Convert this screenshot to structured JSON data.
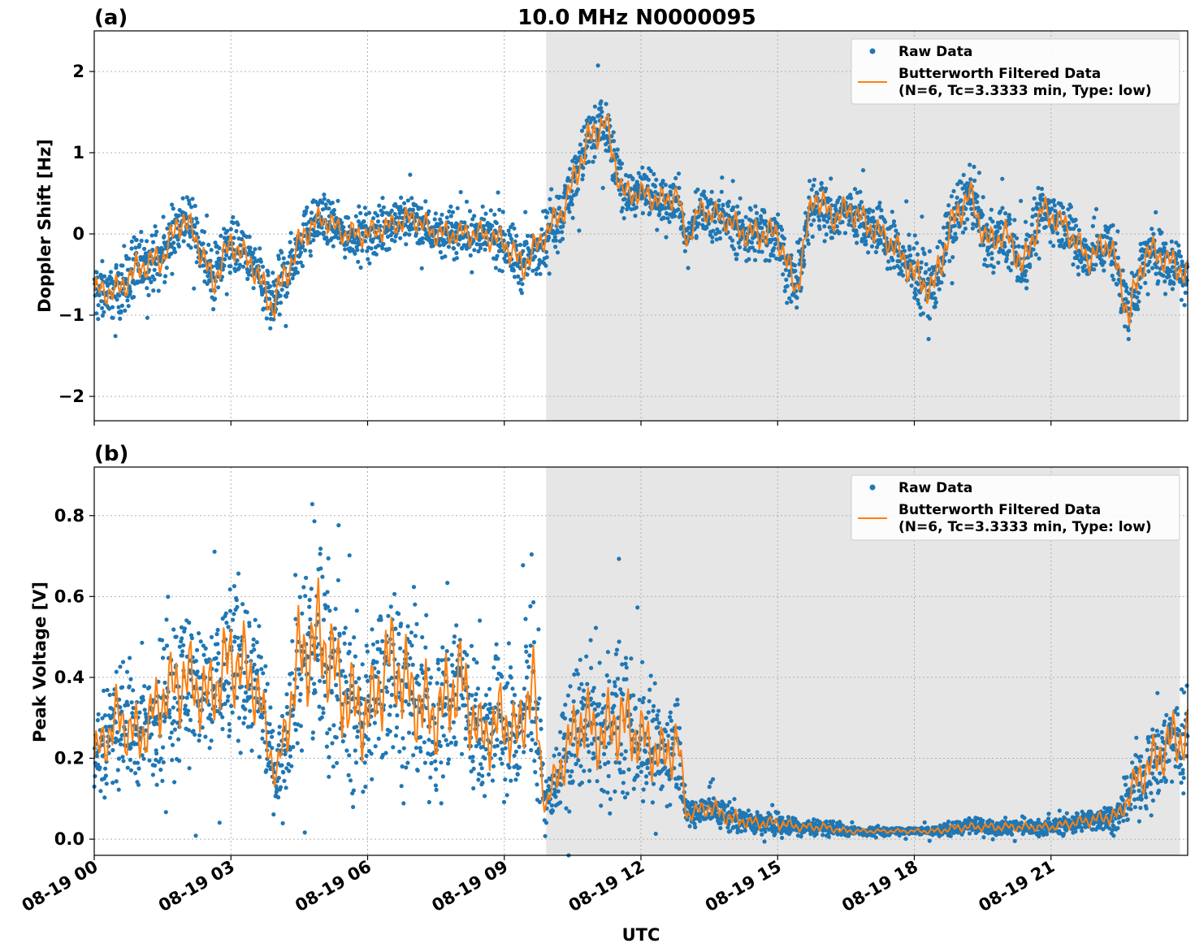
{
  "chart_data": [
    {
      "type": "scatter",
      "panel_label": "(a)",
      "title": "10.0 MHz N0000095",
      "ylabel": "Doppler Shift [Hz]",
      "xlabel": "",
      "xlim_hours": [
        0,
        24
      ],
      "ylim": [
        -2.3,
        2.5
      ],
      "yticks": [
        -2,
        -1,
        0,
        1,
        2
      ],
      "ytick_labels": [
        "−2",
        "−1",
        "0",
        "1",
        "2"
      ],
      "grid": true,
      "legend_position": "top-right",
      "shaded_region_hours": [
        9.92,
        23.83
      ],
      "series": [
        {
          "name": "Raw Data",
          "kind": "scatter",
          "color": "#1f77b4",
          "envelope": {
            "x_hours": [
              0,
              0.5,
              1,
              1.5,
              1.9,
              2.2,
              2.6,
              3.0,
              3.5,
              3.9,
              4.2,
              4.6,
              5.0,
              5.5,
              6.0,
              6.5,
              7.0,
              7.5,
              8.0,
              8.5,
              9.0,
              9.4,
              9.9,
              10.3,
              10.8,
              11.2,
              11.6,
              12.0,
              12.5,
              12.8,
              13.0,
              13.3,
              13.8,
              14.3,
              14.7,
              15.0,
              15.4,
              15.8,
              16.2,
              16.6,
              17.0,
              17.5,
              18.0,
              18.4,
              18.8,
              19.2,
              19.6,
              20.0,
              20.4,
              20.8,
              21.3,
              21.8,
              22.3,
              22.7,
              23.1,
              23.5,
              24.0
            ],
            "center": [
              -0.7,
              -0.7,
              -0.4,
              -0.3,
              0.2,
              0.0,
              -0.6,
              -0.1,
              -0.4,
              -0.9,
              -0.5,
              0.0,
              0.2,
              0.0,
              0.0,
              0.1,
              0.2,
              0.0,
              0.0,
              0.0,
              -0.1,
              -0.4,
              0.0,
              0.3,
              1.1,
              1.4,
              0.5,
              0.5,
              0.4,
              0.5,
              -0.1,
              0.3,
              0.2,
              0.0,
              0.0,
              0.0,
              -0.7,
              0.5,
              0.2,
              0.3,
              0.1,
              -0.1,
              -0.5,
              -0.7,
              0.1,
              0.5,
              -0.1,
              0.0,
              -0.4,
              0.3,
              0.1,
              -0.3,
              -0.1,
              -1.0,
              -0.2,
              -0.3,
              -0.5
            ],
            "halfwidth": [
              0.35,
              0.35,
              0.4,
              0.35,
              0.4,
              0.35,
              0.4,
              0.35,
              0.35,
              0.45,
              0.4,
              0.35,
              0.3,
              0.3,
              0.3,
              0.3,
              0.3,
              0.3,
              0.3,
              0.3,
              0.35,
              0.4,
              0.35,
              0.35,
              0.45,
              0.45,
              0.3,
              0.3,
              0.3,
              0.3,
              0.2,
              0.3,
              0.3,
              0.35,
              0.4,
              0.35,
              0.4,
              0.4,
              0.35,
              0.35,
              0.35,
              0.35,
              0.4,
              0.45,
              0.4,
              0.4,
              0.35,
              0.35,
              0.4,
              0.35,
              0.35,
              0.35,
              0.35,
              0.45,
              0.35,
              0.35,
              0.35
            ]
          }
        },
        {
          "name": "Butterworth Filtered Data",
          "name_line2": "(N=6, Tc=3.3333 min, Type: low)",
          "kind": "line",
          "color": "#ff7f0e",
          "x_hours": [
            0,
            0.5,
            1,
            1.5,
            1.9,
            2.2,
            2.6,
            3.0,
            3.5,
            3.9,
            4.2,
            4.6,
            5.0,
            5.5,
            6.0,
            6.5,
            7.0,
            7.5,
            8.0,
            8.5,
            9.0,
            9.4,
            9.9,
            10.3,
            10.8,
            11.2,
            11.6,
            12.0,
            12.5,
            12.8,
            13.0,
            13.3,
            13.8,
            14.3,
            14.7,
            15.0,
            15.4,
            15.8,
            16.2,
            16.6,
            17.0,
            17.5,
            18.0,
            18.4,
            18.8,
            19.2,
            19.6,
            20.0,
            20.4,
            20.8,
            21.3,
            21.8,
            22.3,
            22.7,
            23.1,
            23.5,
            24.0
          ],
          "values": [
            -0.7,
            -0.7,
            -0.4,
            -0.3,
            0.2,
            0.0,
            -0.6,
            -0.1,
            -0.4,
            -0.9,
            -0.5,
            0.0,
            0.2,
            0.0,
            0.0,
            0.1,
            0.2,
            0.0,
            0.0,
            0.0,
            -0.1,
            -0.4,
            0.0,
            0.3,
            1.1,
            1.4,
            0.5,
            0.5,
            0.4,
            0.5,
            -0.1,
            0.3,
            0.2,
            0.0,
            0.0,
            0.0,
            -0.7,
            0.5,
            0.2,
            0.3,
            0.1,
            -0.1,
            -0.5,
            -0.7,
            0.1,
            0.5,
            -0.1,
            0.0,
            -0.4,
            0.3,
            0.1,
            -0.3,
            -0.1,
            -1.0,
            -0.2,
            -0.3,
            -0.5
          ]
        }
      ]
    },
    {
      "type": "scatter",
      "panel_label": "(b)",
      "title": "",
      "ylabel": "Peak Voltage [V]",
      "xlabel": "UTC",
      "xlim_hours": [
        0,
        24
      ],
      "ylim": [
        -0.04,
        0.92
      ],
      "yticks": [
        0.0,
        0.2,
        0.4,
        0.6,
        0.8
      ],
      "ytick_labels": [
        "0.0",
        "0.2",
        "0.4",
        "0.6",
        "0.8"
      ],
      "xticks_hours": [
        0,
        3,
        6,
        9,
        12,
        15,
        18,
        21
      ],
      "xtick_labels": [
        "08-19 00",
        "08-19 03",
        "08-19 06",
        "08-19 09",
        "08-19 12",
        "08-19 15",
        "08-19 18",
        "08-19 21"
      ],
      "grid": true,
      "legend_position": "top-right",
      "shaded_region_hours": [
        9.92,
        23.83
      ],
      "series": [
        {
          "name": "Raw Data",
          "kind": "scatter",
          "color": "#1f77b4",
          "envelope": {
            "x_hours": [
              0,
              0.5,
              1.0,
              1.5,
              2.0,
              2.5,
              3.0,
              3.5,
              4.0,
              4.5,
              5.0,
              5.5,
              6.0,
              6.5,
              7.0,
              7.5,
              8.0,
              8.5,
              9.0,
              9.3,
              9.6,
              9.9,
              10.3,
              10.7,
              11.1,
              11.5,
              12.0,
              12.5,
              12.8,
              13.0,
              13.5,
              14.0,
              14.5,
              15.0,
              15.5,
              16.0,
              16.5,
              17.0,
              17.5,
              18.0,
              18.5,
              19.0,
              19.5,
              20.0,
              20.5,
              21.0,
              21.5,
              22.0,
              22.5,
              22.9,
              23.3,
              23.7,
              24.0
            ],
            "center": [
              0.2,
              0.3,
              0.25,
              0.35,
              0.4,
              0.35,
              0.45,
              0.4,
              0.15,
              0.45,
              0.5,
              0.35,
              0.3,
              0.45,
              0.35,
              0.3,
              0.4,
              0.25,
              0.3,
              0.25,
              0.4,
              0.08,
              0.2,
              0.3,
              0.25,
              0.3,
              0.25,
              0.2,
              0.25,
              0.06,
              0.08,
              0.05,
              0.04,
              0.04,
              0.03,
              0.03,
              0.02,
              0.02,
              0.02,
              0.02,
              0.02,
              0.03,
              0.03,
              0.03,
              0.03,
              0.03,
              0.04,
              0.05,
              0.06,
              0.15,
              0.2,
              0.25,
              0.25
            ],
            "halfwidth": [
              0.12,
              0.15,
              0.14,
              0.18,
              0.2,
              0.18,
              0.22,
              0.2,
              0.08,
              0.25,
              0.28,
              0.22,
              0.2,
              0.25,
              0.22,
              0.2,
              0.24,
              0.15,
              0.2,
              0.15,
              0.25,
              0.05,
              0.14,
              0.18,
              0.16,
              0.2,
              0.16,
              0.14,
              0.14,
              0.03,
              0.05,
              0.04,
              0.03,
              0.03,
              0.02,
              0.02,
              0.015,
              0.01,
              0.01,
              0.01,
              0.015,
              0.02,
              0.02,
              0.02,
              0.02,
              0.02,
              0.025,
              0.03,
              0.04,
              0.1,
              0.12,
              0.14,
              0.14
            ]
          }
        },
        {
          "name": "Butterworth Filtered Data",
          "name_line2": "(N=6, Tc=3.3333 min, Type: low)",
          "kind": "line",
          "color": "#ff7f0e",
          "x_hours": [
            0,
            0.5,
            1.0,
            1.5,
            2.0,
            2.5,
            3.0,
            3.5,
            4.0,
            4.5,
            5.0,
            5.5,
            6.0,
            6.5,
            7.0,
            7.5,
            8.0,
            8.5,
            9.0,
            9.3,
            9.6,
            9.9,
            10.3,
            10.7,
            11.1,
            11.5,
            12.0,
            12.5,
            12.8,
            13.0,
            13.5,
            14.0,
            14.5,
            15.0,
            15.5,
            16.0,
            16.5,
            17.0,
            17.5,
            18.0,
            18.5,
            19.0,
            19.5,
            20.0,
            20.5,
            21.0,
            21.5,
            22.0,
            22.5,
            22.9,
            23.3,
            23.7,
            24.0
          ],
          "values": [
            0.2,
            0.3,
            0.25,
            0.35,
            0.4,
            0.35,
            0.45,
            0.4,
            0.15,
            0.45,
            0.5,
            0.35,
            0.3,
            0.45,
            0.35,
            0.3,
            0.4,
            0.25,
            0.3,
            0.25,
            0.4,
            0.08,
            0.2,
            0.3,
            0.25,
            0.3,
            0.25,
            0.2,
            0.25,
            0.06,
            0.08,
            0.05,
            0.04,
            0.04,
            0.03,
            0.03,
            0.02,
            0.02,
            0.02,
            0.02,
            0.02,
            0.03,
            0.03,
            0.03,
            0.03,
            0.03,
            0.04,
            0.05,
            0.06,
            0.15,
            0.2,
            0.25,
            0.25
          ]
        }
      ]
    }
  ]
}
